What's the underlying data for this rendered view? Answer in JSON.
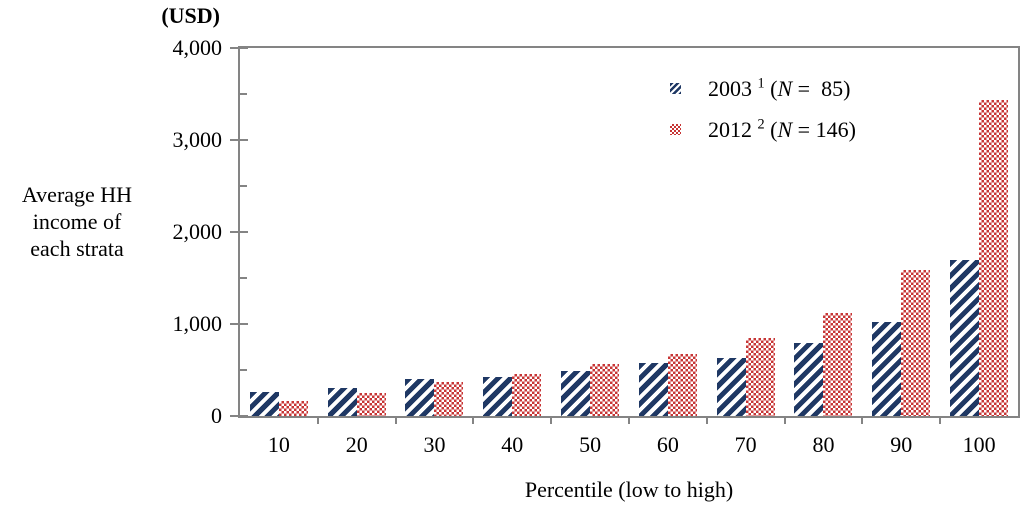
{
  "chart_data": {
    "type": "bar",
    "title": "",
    "y_unit": "(USD)",
    "y_axis_title_lines": [
      "Average HH",
      "income of",
      "each strata"
    ],
    "x_axis_title": "Percentile (low to high)",
    "categories": [
      "10",
      "20",
      "30",
      "40",
      "50",
      "60",
      "70",
      "80",
      "90",
      "100"
    ],
    "series": [
      {
        "name": "2003",
        "footnote": "1",
        "n": 85,
        "pattern": "diagonal-hatch",
        "color": "#1f3864",
        "values": [
          260,
          300,
          400,
          420,
          490,
          575,
          630,
          790,
          1020,
          1700
        ]
      },
      {
        "name": "2012",
        "footnote": "2",
        "n": 146,
        "pattern": "checker",
        "color": "#c73535",
        "values": [
          160,
          250,
          365,
          455,
          560,
          675,
          850,
          1120,
          1590,
          3440
        ]
      }
    ],
    "ylim": [
      0,
      4000
    ],
    "y_major_ticks": [
      {
        "label": "0",
        "value": 0
      },
      {
        "label": "1,000",
        "value": 1000
      },
      {
        "label": "2,000",
        "value": 2000
      },
      {
        "label": "3,000",
        "value": 3000
      },
      {
        "label": "4,000",
        "value": 4000
      }
    ],
    "y_minor_tick_values": [
      500,
      1500,
      2500,
      3500
    ],
    "grid": false,
    "legend_position": "top-right-inside",
    "frame_color": "#848484"
  },
  "legend": {
    "items": [
      {
        "id": "2003",
        "pattern": "diagonal-hatch",
        "parts": [
          {
            "t": "2003 "
          },
          {
            "t": "1",
            "sup": true
          },
          {
            "t": " ("
          },
          {
            "t": "N",
            "italic": true
          },
          {
            "t": " =  85)"
          }
        ]
      },
      {
        "id": "2012",
        "pattern": "checker",
        "parts": [
          {
            "t": "2012 "
          },
          {
            "t": "2",
            "sup": true
          },
          {
            "t": " ("
          },
          {
            "t": "N",
            "italic": true
          },
          {
            "t": " = 146)"
          }
        ]
      }
    ]
  }
}
